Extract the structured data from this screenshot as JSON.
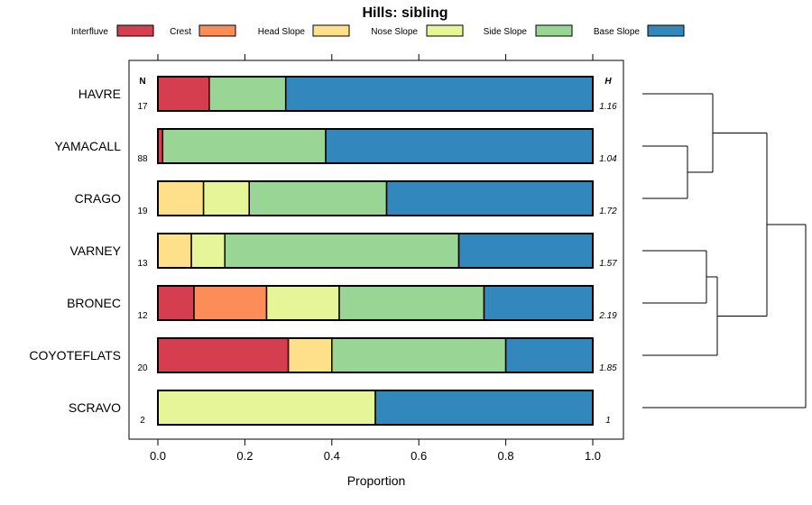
{
  "chart_data": {
    "type": "bar",
    "orientation": "horizontal",
    "stacked": true,
    "title": "Hills: sibling",
    "xlabel": "Proportion",
    "ylabel": "",
    "xlim": [
      0,
      1
    ],
    "xticks": [
      "0.0",
      "0.2",
      "0.4",
      "0.6",
      "0.8",
      "1.0"
    ],
    "legend_position": "top",
    "n_header": "N",
    "h_header": "H",
    "categories": [
      "HAVRE",
      "YAMACALL",
      "CRAGO",
      "VARNEY",
      "BRONEC",
      "COYOTEFLATS",
      "SCRAVO"
    ],
    "n_values": [
      "17",
      "88",
      "19",
      "13",
      "12",
      "20",
      "2"
    ],
    "h_values": [
      "1.16",
      "1.04",
      "1.72",
      "1.57",
      "2.19",
      "1.85",
      "1"
    ],
    "series": [
      {
        "name": "Interfluve",
        "color": "#D53E4F",
        "values": [
          0.118,
          0.011,
          0,
          0,
          0.083,
          0.3,
          0
        ]
      },
      {
        "name": "Crest",
        "color": "#FC8D59",
        "values": [
          0,
          0,
          0,
          0,
          0.167,
          0,
          0
        ]
      },
      {
        "name": "Head Slope",
        "color": "#FEE08B",
        "values": [
          0,
          0,
          0.105,
          0.077,
          0,
          0.1,
          0
        ]
      },
      {
        "name": "Nose Slope",
        "color": "#E6F598",
        "values": [
          0,
          0,
          0.105,
          0.077,
          0.167,
          0,
          0.5
        ]
      },
      {
        "name": "Side Slope",
        "color": "#99D594",
        "values": [
          0.176,
          0.375,
          0.316,
          0.538,
          0.333,
          0.4,
          0
        ]
      },
      {
        "name": "Base Slope",
        "color": "#3288BD",
        "values": [
          0.706,
          0.614,
          0.474,
          0.308,
          0.25,
          0.2,
          0.5
        ]
      }
    ],
    "dendrogram": {
      "description": "hierarchical clustering of categories",
      "merges": [
        {
          "left": "YAMACALL",
          "right": "CRAGO",
          "height": 0.15
        },
        {
          "left": "HAVRE",
          "right": "YAMACALL+CRAGO",
          "height": 0.24
        },
        {
          "left": "VARNEY",
          "right": "BRONEC",
          "height": 0.22
        },
        {
          "left": "VARNEY+BRONEC",
          "right": "COYOTEFLATS",
          "height": 0.26
        },
        {
          "left": "HAVRE+YAMACALL+CRAGO",
          "right": "VARNEY+BRONEC+COYOTEFLATS",
          "height": 0.42
        },
        {
          "left": "all-others",
          "right": "SCRAVO",
          "height": 0.55
        }
      ]
    }
  }
}
